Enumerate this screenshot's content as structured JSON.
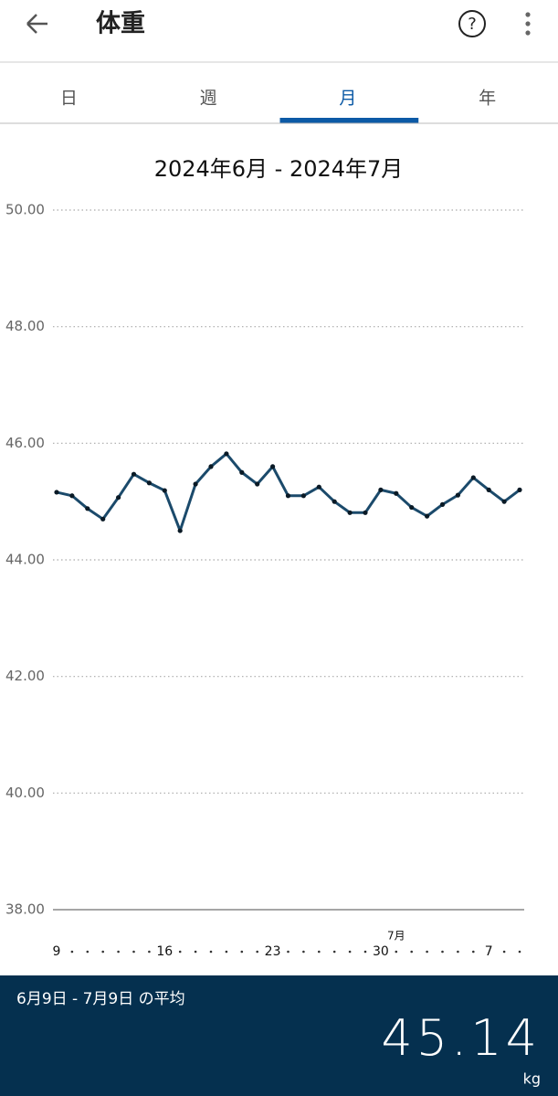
{
  "header": {
    "title": "体重"
  },
  "tabs": [
    {
      "label": "日",
      "selected": false
    },
    {
      "label": "週",
      "selected": false
    },
    {
      "label": "月",
      "selected": true
    },
    {
      "label": "年",
      "selected": false
    }
  ],
  "chart_data": {
    "type": "line",
    "title": "2024年6月 - 2024年7月",
    "categories": [
      "9",
      null,
      null,
      null,
      null,
      null,
      null,
      "16",
      null,
      null,
      null,
      null,
      null,
      null,
      "23",
      null,
      null,
      null,
      null,
      null,
      null,
      "30",
      null,
      null,
      null,
      null,
      null,
      null,
      "7",
      null,
      null
    ],
    "annotation": "7月",
    "series": [
      {
        "color": "#1b4a6b",
        "values": [
          45.16,
          45.1,
          44.88,
          44.7,
          45.07,
          45.47,
          45.32,
          45.19,
          44.5,
          45.3,
          45.6,
          45.82,
          45.5,
          45.3,
          45.6,
          45.1,
          45.1,
          45.25,
          45.0,
          44.81,
          44.81,
          45.2,
          45.14,
          44.9,
          44.75,
          44.95,
          45.11,
          45.41,
          45.2,
          45.0,
          45.2
        ]
      }
    ],
    "ylim": [
      38,
      50
    ],
    "yticks": [
      {
        "value": 38,
        "label": "38.00"
      },
      {
        "value": 40,
        "label": "40.00"
      },
      {
        "value": 42,
        "label": "42.00"
      },
      {
        "value": 44,
        "label": "44.00"
      },
      {
        "value": 46,
        "label": "46.00"
      },
      {
        "value": 48,
        "label": "48.00"
      },
      {
        "value": 50,
        "label": "50.00"
      }
    ],
    "grid": true
  },
  "footer": {
    "label": "6月9日 - 7月9日 の平均",
    "value": 45.14,
    "unit": "kg"
  }
}
